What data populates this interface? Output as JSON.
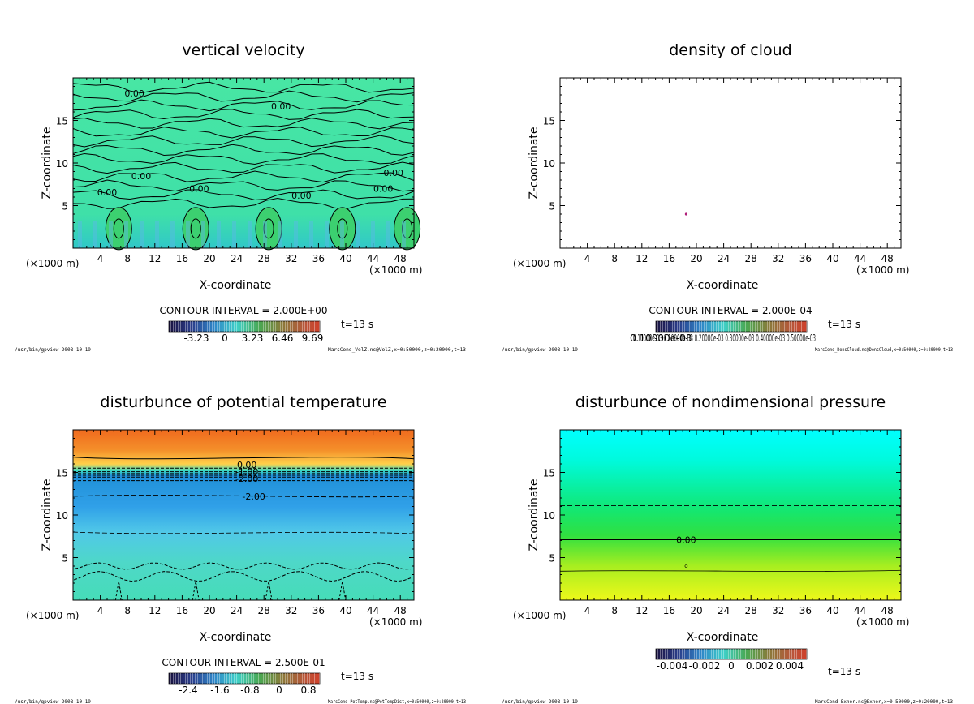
{
  "chart_data": [
    {
      "type": "heatmap",
      "title": "vertical velocity",
      "xlabel": "X-coordinate",
      "ylabel": "Z-coordinate",
      "x_unit": "(×1000 m)",
      "xlim": [
        0,
        50
      ],
      "ylim": [
        0,
        20
      ],
      "x_ticks": [
        4,
        8,
        12,
        16,
        20,
        24,
        28,
        32,
        36,
        40,
        44,
        48
      ],
      "y_ticks": [
        5,
        10,
        15
      ],
      "contour_interval": "CONTOUR INTERVAL = 2.000E+00",
      "contour_labels": [
        "0.00",
        "0.00",
        "0.00",
        "0.00",
        "0.00",
        "0.00",
        "0.00",
        "0.00"
      ],
      "colorbar_ticks": [
        "-3.23",
        "0",
        "3.23",
        "6.46",
        "9.69"
      ],
      "time_label": "t=13 s",
      "footer_left": "/usr/bin/gpview 2008-10-19",
      "footer_right": "MarsCond_VelZ.nc@VelZ,x=0:50000,z=0:20000,t=13"
    },
    {
      "type": "heatmap",
      "title": "density of cloud",
      "xlabel": "X-coordinate",
      "ylabel": "Z-coordinate",
      "x_unit": "(×1000 m)",
      "xlim": [
        0,
        50
      ],
      "ylim": [
        0,
        20
      ],
      "x_ticks": [
        4,
        8,
        12,
        16,
        20,
        24,
        28,
        32,
        36,
        40,
        44,
        48
      ],
      "y_ticks": [
        5,
        10,
        15
      ],
      "contour_interval": "CONTOUR INTERVAL = 2.000E-04",
      "colorbar_ticks": [
        "0.10000e-03"
      ],
      "colorbar_overlap_text": "0.10000e-03 0.10000e-03 0.20000e-03 0.30000e-03 0.40000e-03 0.50000e-03",
      "time_label": "t=13 s",
      "point": {
        "x": 18.5,
        "z": 4.0
      },
      "footer_left": "/usr/bin/gpview 2008-10-19",
      "footer_right": "MarsCond_DensCloud.nc@DensCloud,x=0:50000,z=0:20000,t=13"
    },
    {
      "type": "heatmap",
      "title": "disturbunce of potential temperature",
      "xlabel": "X-coordinate",
      "ylabel": "Z-coordinate",
      "x_unit": "(×1000 m)",
      "xlim": [
        0,
        50
      ],
      "ylim": [
        0,
        20
      ],
      "x_ticks": [
        4,
        8,
        12,
        16,
        20,
        24,
        28,
        32,
        36,
        40,
        44,
        48
      ],
      "y_ticks": [
        5,
        10,
        15
      ],
      "contour_interval": "CONTOUR INTERVAL = 2.500E-01",
      "contour_labels": [
        "0.00",
        "-1.00",
        "-2.00",
        "-2.00"
      ],
      "colorbar_ticks": [
        "-2.4",
        "-1.6",
        "-0.8",
        "0",
        "0.8"
      ],
      "time_label": "t=13 s",
      "footer_left": "/usr/bin/gpview 2008-10-19",
      "footer_right": "MarsCond_PotTemp.nc@PotTempDist,x=0:50000,z=0:20000,t=13"
    },
    {
      "type": "heatmap",
      "title": "disturbunce of nondimensional pressure",
      "xlabel": "X-coordinate",
      "ylabel": "Z-coordinate",
      "x_unit": "(×1000 m)",
      "xlim": [
        0,
        50
      ],
      "ylim": [
        0,
        20
      ],
      "x_ticks": [
        4,
        8,
        12,
        16,
        20,
        24,
        28,
        32,
        36,
        40,
        44,
        48
      ],
      "y_ticks": [
        5,
        10,
        15
      ],
      "contour_labels": [
        "0.00"
      ],
      "colorbar_ticks": [
        "-0.004",
        "-0.002",
        "0",
        "0.002",
        "0.004"
      ],
      "time_label": "t=13 s",
      "footer_left": "/usr/bin/gpview 2008-10-19",
      "footer_right": "MarsCond_Exner.nc@Exner,x=0:50000,z=0:20000,t=13"
    }
  ]
}
